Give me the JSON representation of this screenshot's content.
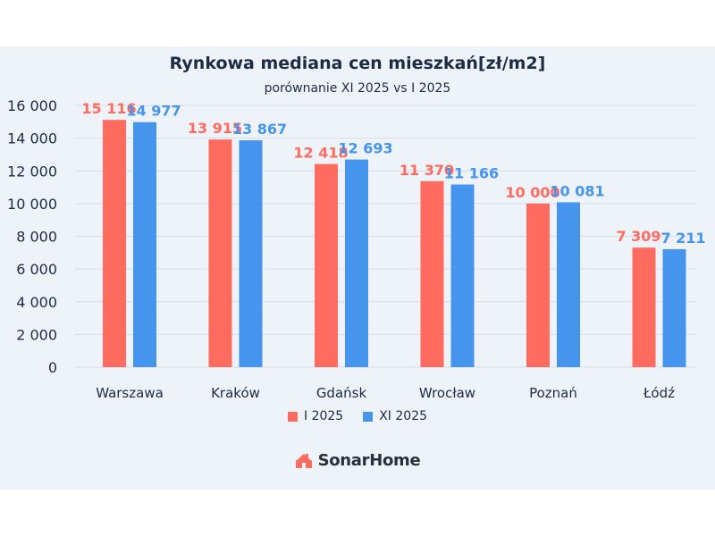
{
  "chart_data": {
    "type": "bar",
    "title": "Rynkowa mediana cen mieszkań[zł/m2]",
    "subtitle": "porównanie XI 2025 vs I 2025",
    "categories": [
      "Warszawa",
      "Kraków",
      "Gdańsk",
      "Wrocław",
      "Poznań",
      "Łódź"
    ],
    "series": [
      {
        "name": "I 2025",
        "color": "#ff6b5f",
        "values": [
          15116,
          13915,
          12418,
          11370,
          10000,
          7309
        ],
        "labels": [
          "15 116",
          "13 915",
          "12 418",
          "11 370",
          "10 000",
          "7 309"
        ]
      },
      {
        "name": "XI 2025",
        "color": "#4595ee",
        "values": [
          14977,
          13867,
          12693,
          11166,
          10081,
          7211
        ],
        "labels": [
          "14 977",
          "13 867",
          "12 693",
          "11 166",
          "10 081",
          "7 211"
        ]
      }
    ],
    "yticks": [
      0,
      2000,
      4000,
      6000,
      8000,
      10000,
      12000,
      14000,
      16000
    ],
    "ytick_labels": [
      "0",
      "2 000",
      "4 000",
      "6 000",
      "8 000",
      "10 000",
      "12 000",
      "14 000",
      "16 000"
    ],
    "ylim": [
      0,
      16000
    ],
    "grid": true,
    "legend_position": "bottom"
  },
  "brand": {
    "name": "SonarHome",
    "icon": "house-icon",
    "color": "#ff6b5f"
  }
}
